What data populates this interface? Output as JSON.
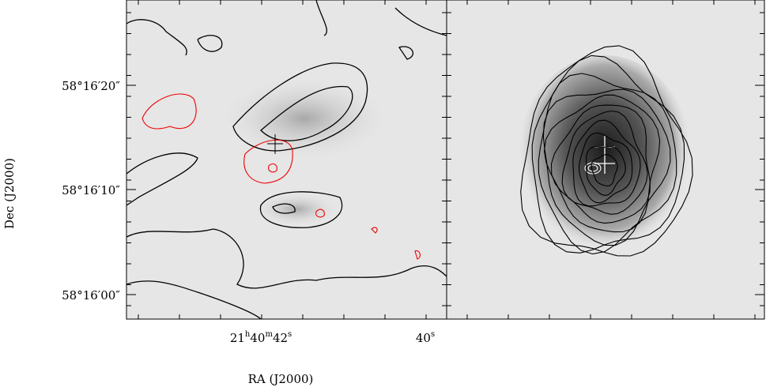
{
  "y_axis": {
    "label": "Dec (J2000)",
    "ticks": [
      "58°16′20″",
      "58°16′10″",
      "58°16′00″"
    ]
  },
  "x_axis": {
    "label": "RA (J2000)",
    "ticks": [
      [
        "21",
        "h",
        "40",
        "m",
        "42",
        "s"
      ],
      [
        "40",
        "s"
      ]
    ]
  }
}
